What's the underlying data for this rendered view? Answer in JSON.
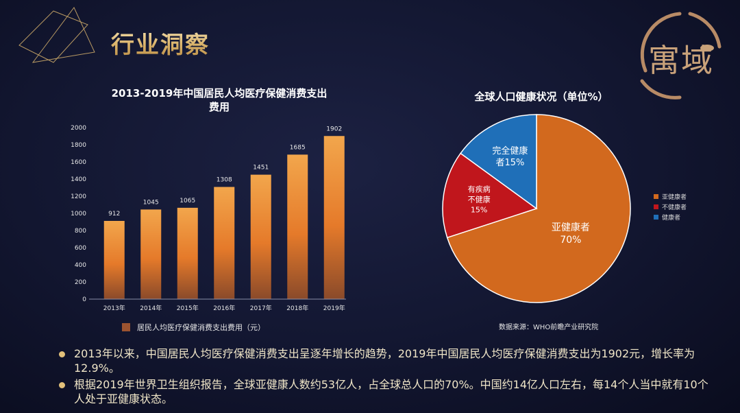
{
  "page": {
    "title": "行业洞察",
    "logo_text": "寓域"
  },
  "chart_data": [
    {
      "type": "bar",
      "title": "2013-2019年中国居民人均医疗保健消费支出",
      "title_line2": "费用",
      "categories": [
        "2013年",
        "2014年",
        "2015年",
        "2016年",
        "2017年",
        "2018年",
        "2019年"
      ],
      "series": [
        {
          "name": "居民人均医疗保健消费支出费用（元）",
          "values": [
            912,
            1045,
            1065,
            1308,
            1451,
            1685,
            1902
          ]
        }
      ],
      "ylim": [
        0,
        2000
      ],
      "yticks": [
        "0",
        "200",
        "400",
        "600",
        "800",
        "1000",
        "1200",
        "1400",
        "1600",
        "1800",
        "2000"
      ],
      "data_labels": [
        "912",
        "1045",
        "1065",
        "1308",
        "1451",
        "1685",
        "1902"
      ],
      "grid": false,
      "legend": "bottom",
      "colors": {
        "bar_top": "#f0a04a",
        "bar_mid": "#e57a2a",
        "bar_bottom": "#8a4a2a",
        "legend": "#9b5330"
      }
    },
    {
      "type": "pie",
      "title": "全球人口健康状况（单位%）",
      "slices": [
        {
          "name": "亚健康者",
          "value": 70,
          "label_line1": "亚健康者",
          "label_line2": "70%",
          "color": "#d2691e"
        },
        {
          "name": "不健康者",
          "value": 15,
          "label_line1": "有疾病",
          "label_line2": "不健康",
          "label_line3": "15%",
          "color": "#c0161c"
        },
        {
          "name": "健康者",
          "value": 15,
          "label_line1": "完全健康",
          "label_line2": "者15%",
          "color": "#1f6fb8"
        }
      ],
      "legend": "right",
      "source": "数据来源：WHO前瞻产业研究院"
    }
  ],
  "bullets": [
    "2013年以来，中国居民人均医疗保健消费支出呈逐年增长的趋势，2019年中国居民人均医疗保健消费支出为1902元，增长率为12.9%。",
    "根据2019年世界卫生组织报告，全球亚健康人数约53亿人，占全球总人口的70%。中国约14亿人口左右，每14个人当中就有10个人处于亚健康状态。"
  ]
}
